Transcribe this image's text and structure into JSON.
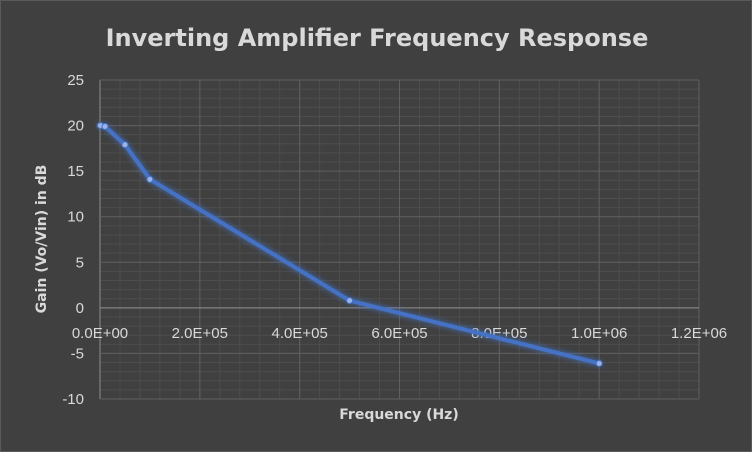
{
  "chart_data": {
    "type": "line",
    "title": "Inverting Amplifier Frequency Response",
    "xlabel": "Frequency (Hz)",
    "ylabel": "Gain (Vo/Vin) in dB",
    "xlim": [
      0,
      1200000
    ],
    "ylim": [
      -10,
      25
    ],
    "x_ticks": [
      {
        "value": 0,
        "label": "0.0E+00"
      },
      {
        "value": 200000,
        "label": "2.0E+05"
      },
      {
        "value": 400000,
        "label": "4.0E+05"
      },
      {
        "value": 600000,
        "label": "6.0E+05"
      },
      {
        "value": 800000,
        "label": "8.0E+05"
      },
      {
        "value": 1000000,
        "label": "1.0E+06"
      },
      {
        "value": 1200000,
        "label": "1.2E+06"
      }
    ],
    "y_ticks": [
      {
        "value": 25,
        "label": "25"
      },
      {
        "value": 20,
        "label": "20"
      },
      {
        "value": 15,
        "label": "15"
      },
      {
        "value": 10,
        "label": "10"
      },
      {
        "value": 5,
        "label": "5"
      },
      {
        "value": 0,
        "label": "0"
      },
      {
        "value": -5,
        "label": "-5"
      },
      {
        "value": -10,
        "label": "-10"
      }
    ],
    "grid": true,
    "legend": "none",
    "series": [
      {
        "x": [
          100,
          1000,
          10000,
          50000,
          100000,
          500000,
          1000000
        ],
        "y": [
          20,
          20,
          19.9,
          17.9,
          14.1,
          0.8,
          -6.1
        ],
        "color": "#4472c4"
      }
    ]
  }
}
